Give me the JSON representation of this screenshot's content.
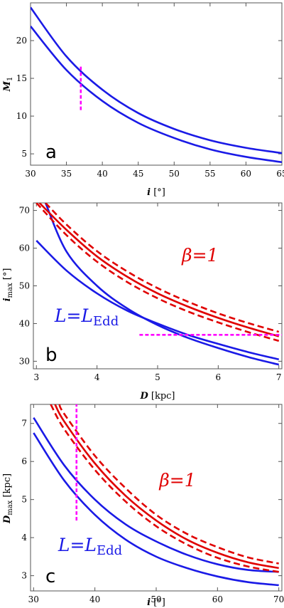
{
  "chart_data": [
    {
      "type": "line",
      "panel_label": "a",
      "ylabel": "M",
      "ylabel_sub": "1",
      "xlabel": "i",
      "xlabel_unit": "[°]",
      "xlim": [
        30,
        65
      ],
      "ylim": [
        3.5,
        25
      ],
      "xticks": [
        30,
        35,
        40,
        45,
        50,
        55,
        60,
        65
      ],
      "yticks": [
        5,
        10,
        15,
        20
      ],
      "series": [
        {
          "color": "#1a1ae6",
          "style": "solid",
          "x": [
            30,
            35,
            40,
            45,
            50,
            55,
            60,
            65
          ],
          "y": [
            24.4,
            17.9,
            13.5,
            10.4,
            8.3,
            6.8,
            5.8,
            5.1
          ]
        },
        {
          "color": "#1a1ae6",
          "style": "solid",
          "x": [
            30,
            35,
            40,
            45,
            50,
            55,
            60,
            65
          ],
          "y": [
            21.9,
            16.1,
            12.0,
            9.1,
            7.1,
            5.6,
            4.6,
            3.9
          ]
        }
      ],
      "markers": [
        {
          "color": "#ff00ff",
          "orientation": "vertical",
          "x": 37,
          "y_range": [
            10.8,
            16.8
          ]
        }
      ],
      "annotations": []
    },
    {
      "type": "line",
      "panel_label": "b",
      "ylabel": "i",
      "ylabel_sub": "max",
      "ylabel_unit": "[°]",
      "xlabel": "D",
      "xlabel_unit": "[kpc]",
      "xlim": [
        2.95,
        7.05
      ],
      "ylim": [
        28,
        72
      ],
      "xticks": [
        3,
        4,
        5,
        6,
        7
      ],
      "yticks": [
        30,
        40,
        50,
        60,
        70
      ],
      "series": [
        {
          "color": "#1a1ae6",
          "style": "solid",
          "x": [
            3.0,
            3.5,
            4.0,
            4.5,
            5.0,
            5.5,
            6.0,
            6.5,
            7.0
          ],
          "y": [
            62.0,
            54.0,
            48.0,
            43.4,
            40.0,
            37.0,
            34.6,
            32.4,
            30.5
          ]
        },
        {
          "color": "#1a1ae6",
          "style": "solid",
          "x": [
            3.15,
            3.5,
            4.0,
            4.5,
            5.0,
            5.5,
            6.0,
            6.5,
            7.0
          ],
          "y": [
            72.0,
            59.0,
            50.0,
            44.0,
            39.6,
            36.2,
            33.5,
            31.1,
            29.1
          ]
        },
        {
          "color": "#e00000",
          "style": "solid",
          "x": [
            3.05,
            3.5,
            4.0,
            4.5,
            5.0,
            5.5,
            6.0,
            6.5,
            7.0
          ],
          "y": [
            72.0,
            64.8,
            57.8,
            52.4,
            48.0,
            44.5,
            41.5,
            38.9,
            36.6
          ]
        },
        {
          "color": "#e00000",
          "style": "dashed",
          "x": [
            3.15,
            3.5,
            4.0,
            4.5,
            5.0,
            5.5,
            6.0,
            6.5,
            7.0
          ],
          "y": [
            72.0,
            66.2,
            59.2,
            53.8,
            49.4,
            45.8,
            42.7,
            40.1,
            37.8
          ]
        },
        {
          "color": "#e00000",
          "style": "dashed",
          "x": [
            3.0,
            3.5,
            4.0,
            4.5,
            5.0,
            5.5,
            6.0,
            6.5,
            7.0
          ],
          "y": [
            72.0,
            63.4,
            56.4,
            51.0,
            46.7,
            43.2,
            40.3,
            37.7,
            35.4
          ]
        }
      ],
      "markers": [
        {
          "color": "#ff00ff",
          "orientation": "horizontal",
          "y": 37,
          "x_range": [
            4.7,
            7.05
          ]
        }
      ],
      "annotations": [
        {
          "text": "β=1",
          "color": "#e00000",
          "x": 5.4,
          "y": 56.5
        },
        {
          "text": "L=L",
          "sub": "Edd",
          "color": "#1a1ae6",
          "x": 3.3,
          "y": 40.5
        }
      ]
    },
    {
      "type": "line",
      "panel_label": "c",
      "ylabel": "D",
      "ylabel_sub": "max",
      "ylabel_unit": "[kpc]",
      "xlabel": "i",
      "xlabel_unit": "[°]",
      "xlim": [
        29.5,
        70.5
      ],
      "ylim": [
        2.6,
        7.5
      ],
      "xticks": [
        30,
        40,
        50,
        60,
        70
      ],
      "yticks": [
        3,
        4,
        5,
        6,
        7
      ],
      "series": [
        {
          "color": "#1a1ae6",
          "style": "solid",
          "x": [
            30,
            35,
            40,
            45,
            50,
            55,
            60,
            65,
            70
          ],
          "y": [
            7.15,
            5.9,
            5.0,
            4.35,
            3.9,
            3.55,
            3.3,
            3.15,
            3.1
          ]
        },
        {
          "color": "#1a1ae6",
          "style": "solid",
          "x": [
            30,
            35,
            40,
            45,
            50,
            55,
            60,
            65,
            70
          ],
          "y": [
            6.75,
            5.5,
            4.6,
            3.95,
            3.5,
            3.2,
            2.98,
            2.83,
            2.75
          ]
        },
        {
          "color": "#e00000",
          "style": "solid",
          "x": [
            33.5,
            35,
            40,
            45,
            50,
            55,
            60,
            65,
            70
          ],
          "y": [
            7.5,
            7.05,
            5.95,
            5.1,
            4.45,
            3.95,
            3.6,
            3.35,
            3.2
          ]
        },
        {
          "color": "#e00000",
          "style": "dashed",
          "x": [
            34.2,
            35,
            40,
            45,
            50,
            55,
            60,
            65,
            70
          ],
          "y": [
            7.5,
            7.25,
            6.15,
            5.3,
            4.6,
            4.1,
            3.75,
            3.48,
            3.32
          ]
        },
        {
          "color": "#e00000",
          "style": "dashed",
          "x": [
            32.8,
            35,
            40,
            45,
            50,
            55,
            60,
            65,
            70
          ],
          "y": [
            7.5,
            6.85,
            5.78,
            4.95,
            4.3,
            3.82,
            3.47,
            3.24,
            3.1
          ]
        }
      ],
      "markers": [
        {
          "color": "#ff00ff",
          "orientation": "vertical",
          "x": 37,
          "y_range": [
            4.45,
            7.5
          ]
        }
      ],
      "annotations": [
        {
          "text": "β=1",
          "color": "#e00000",
          "x": 50.5,
          "y": 5.35
        },
        {
          "text": "L=L",
          "sub": "Edd",
          "color": "#1a1ae6",
          "x": 34,
          "y": 3.65
        }
      ]
    }
  ]
}
